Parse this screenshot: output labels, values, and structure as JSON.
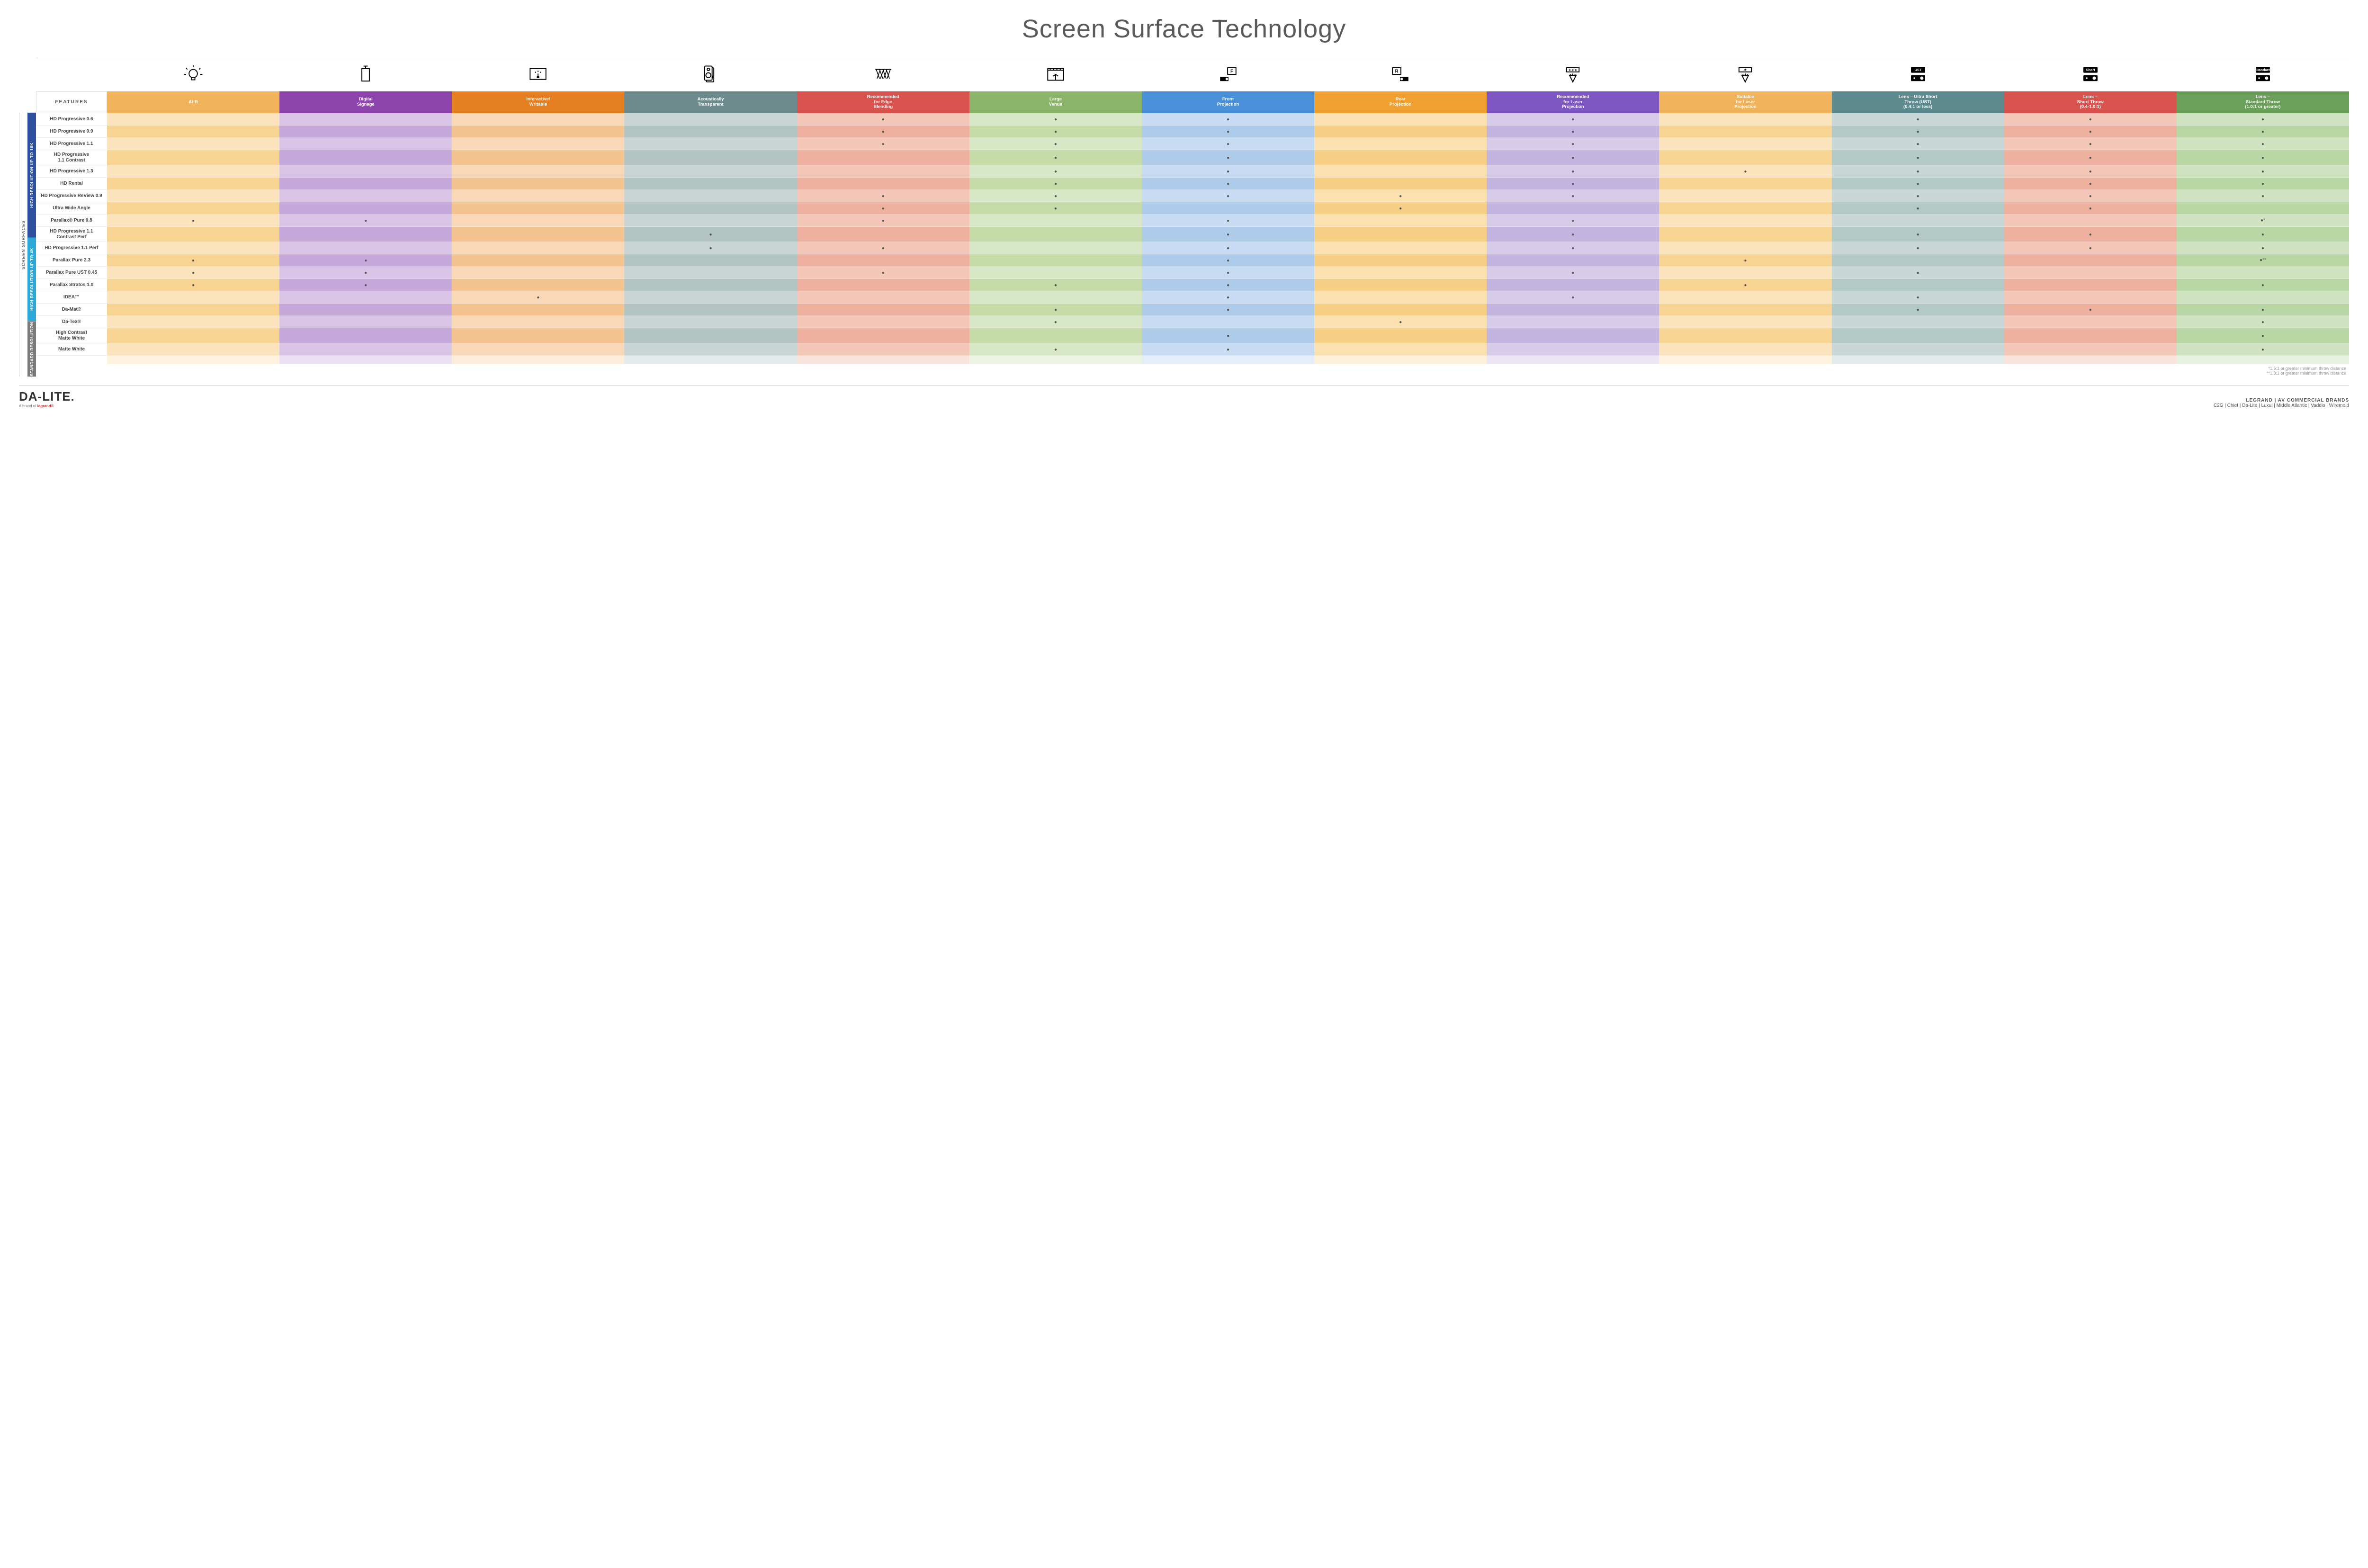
{
  "title": "Screen Surface Technology",
  "colors": {
    "row_alt_light_factor": 0.55,
    "side_group_bg": [
      "#2f4fa0",
      "#2ca8d8",
      "#7b7b7b"
    ],
    "headers": [
      "#f0b25a",
      "#8e44ad",
      "#e67e22",
      "#6d8b8d",
      "#d9534f",
      "#8bb46b",
      "#4a90d9",
      "#f0a030",
      "#7e57c2",
      "#f0b25a",
      "#5c8a8f",
      "#d9534f",
      "#6aa05a"
    ],
    "col_light": [
      "#fbe4bb",
      "#d9c3e6",
      "#f9d8b8",
      "#c9d5d4",
      "#f4c7b9",
      "#d8e7c5",
      "#c7dcf2",
      "#fbe0b0",
      "#d6cbe9",
      "#fbe4bb",
      "#c9d8d6",
      "#f4c7b9",
      "#cfe3c0"
    ],
    "col_mid": [
      "#f7d492",
      "#c7a8db",
      "#f4c38f",
      "#b3c5c3",
      "#eeb1a0",
      "#c5dba8",
      "#aecbea",
      "#f7d086",
      "#c4b4e0",
      "#f7d492",
      "#b3c9c6",
      "#eeb1a0",
      "#b9d7a5"
    ]
  },
  "columns": [
    {
      "key": "alr",
      "label": "ALR",
      "icon": "bulb"
    },
    {
      "key": "signage",
      "label": "Digital\nSignage",
      "icon": "signage"
    },
    {
      "key": "interactive",
      "label": "Interactive/\nWritable",
      "icon": "touch"
    },
    {
      "key": "acoustic",
      "label": "Acoustically\nTransparent",
      "icon": "speaker"
    },
    {
      "key": "edge",
      "label": "Recommended\nfor Edge\nBlending",
      "icon": "blend"
    },
    {
      "key": "venue",
      "label": "Large\nVenue",
      "icon": "venue"
    },
    {
      "key": "front",
      "label": "Front\nProjection",
      "icon": "front"
    },
    {
      "key": "rear",
      "label": "Rear\nProjection",
      "icon": "rear"
    },
    {
      "key": "laser_rec",
      "label": "Recommended\nfor Laser\nProjection",
      "icon": "laser3"
    },
    {
      "key": "laser_suit",
      "label": "Suitable\nfor Laser\nProjection",
      "icon": "laser1"
    },
    {
      "key": "ust",
      "label": "Lens – Ultra Short\nThrow (UST)\n(0.4:1 or less)",
      "icon": "proj",
      "badge": "UST"
    },
    {
      "key": "short",
      "label": "Lens –\nShort Throw\n(0.4-1.0:1)",
      "icon": "proj",
      "badge": "Short"
    },
    {
      "key": "std",
      "label": "Lens –\nStandard Throw\n(1.0:1 or greater)",
      "icon": "proj",
      "badge": "Standard"
    }
  ],
  "groups": [
    {
      "label": "HIGH RESOLUTION UP TO 16K",
      "rows": 9
    },
    {
      "label": "HIGH RESOLUTION UP TO 4K",
      "rows": 6
    },
    {
      "label": "STANDARD RESOLUTION",
      "rows": 4
    }
  ],
  "side_outer_label": "SCREEN SURFACES",
  "features_header": "FEATURES",
  "rows": [
    {
      "label": "HD Progressive 0.6",
      "d": [
        "",
        "",
        "",
        "",
        "●",
        "●",
        "●",
        "",
        "●",
        "",
        "●",
        "●",
        "●"
      ]
    },
    {
      "label": "HD Progressive 0.9",
      "d": [
        "",
        "",
        "",
        "",
        "●",
        "●",
        "●",
        "",
        "●",
        "",
        "●",
        "●",
        "●"
      ]
    },
    {
      "label": "HD Progressive 1.1",
      "d": [
        "",
        "",
        "",
        "",
        "●",
        "●",
        "●",
        "",
        "●",
        "",
        "●",
        "●",
        "●"
      ]
    },
    {
      "label": "HD Progressive\n1.1 Contrast",
      "d": [
        "",
        "",
        "",
        "",
        "",
        "●",
        "●",
        "",
        "●",
        "",
        "●",
        "●",
        "●"
      ]
    },
    {
      "label": "HD Progressive 1.3",
      "d": [
        "",
        "",
        "",
        "",
        "",
        "●",
        "●",
        "",
        "●",
        "●",
        "●",
        "●",
        "●"
      ]
    },
    {
      "label": "HD Rental",
      "d": [
        "",
        "",
        "",
        "",
        "",
        "●",
        "●",
        "",
        "●",
        "",
        "●",
        "●",
        "●"
      ]
    },
    {
      "label": "HD Progressive ReView 0.9",
      "d": [
        "",
        "",
        "",
        "",
        "●",
        "●",
        "●",
        "●",
        "●",
        "",
        "●",
        "●",
        "●"
      ]
    },
    {
      "label": "Ultra Wide Angle",
      "d": [
        "",
        "",
        "",
        "",
        "●",
        "●",
        "",
        "●",
        "",
        "",
        "●",
        "●",
        ""
      ]
    },
    {
      "label": "Parallax® Pure 0.8",
      "d": [
        "●",
        "●",
        "",
        "",
        "●",
        "",
        "●",
        "",
        "●",
        "",
        "",
        "",
        "●*"
      ]
    },
    {
      "label": "HD Progressive 1.1\nContrast Perf",
      "d": [
        "",
        "",
        "",
        "●",
        "",
        "",
        "●",
        "",
        "●",
        "",
        "●",
        "●",
        "●"
      ]
    },
    {
      "label": "HD Progressive 1.1 Perf",
      "d": [
        "",
        "",
        "",
        "●",
        "●",
        "",
        "●",
        "",
        "●",
        "",
        "●",
        "●",
        "●"
      ]
    },
    {
      "label": "Parallax Pure 2.3",
      "d": [
        "●",
        "●",
        "",
        "",
        "",
        "",
        "●",
        "",
        "",
        "●",
        "",
        "",
        "●**"
      ]
    },
    {
      "label": "Parallax Pure UST 0.45",
      "d": [
        "●",
        "●",
        "",
        "",
        "●",
        "",
        "●",
        "",
        "●",
        "",
        "●",
        "",
        ""
      ]
    },
    {
      "label": "Parallax Stratos 1.0",
      "d": [
        "●",
        "●",
        "",
        "",
        "",
        "●",
        "●",
        "",
        "",
        "●",
        "",
        "",
        "●"
      ]
    },
    {
      "label": "IDEA™",
      "d": [
        "",
        "",
        "●",
        "",
        "",
        "",
        "●",
        "",
        "●",
        "",
        "●",
        "",
        ""
      ]
    },
    {
      "label": "Da-Mat®",
      "d": [
        "",
        "",
        "",
        "",
        "",
        "●",
        "●",
        "",
        "",
        "",
        "●",
        "●",
        "●"
      ]
    },
    {
      "label": "Da-Tex®",
      "d": [
        "",
        "",
        "",
        "",
        "",
        "●",
        "",
        "●",
        "",
        "",
        "",
        "",
        "●"
      ]
    },
    {
      "label": "High Contrast\nMatte White",
      "d": [
        "",
        "",
        "",
        "",
        "",
        "",
        "●",
        "",
        "",
        "",
        "",
        "",
        "●"
      ]
    },
    {
      "label": "Matte White",
      "d": [
        "",
        "",
        "",
        "",
        "",
        "●",
        "●",
        "",
        "",
        "",
        "",
        "",
        "●"
      ]
    }
  ],
  "footnotes": [
    "*1.5:1 or greater minimum throw distance",
    "**1.8:1 or greater minimum throw distance"
  ],
  "footer": {
    "logo": "DA-LITE.",
    "logo_sub_prefix": "A brand of ",
    "logo_sub_brand": "legrand®",
    "right_heading": "LEGRAND | AV COMMERCIAL BRANDS",
    "brands": "C2G  |  Chief  |  Da-Lite  |  Luxul  |  Middle Atlantic  |  Vaddio  |  Wiremold"
  }
}
